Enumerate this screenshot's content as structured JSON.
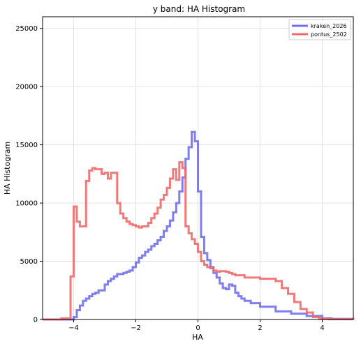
{
  "chart_data": {
    "type": "line",
    "title": "y band: HA Histogram",
    "xlabel": "HA",
    "ylabel": "HA Histogram",
    "xlim": [
      -5,
      5
    ],
    "ylim": [
      0,
      26000
    ],
    "xticks": [
      -4,
      -2,
      0,
      2,
      4
    ],
    "yticks": [
      0,
      5000,
      10000,
      15000,
      20000,
      25000
    ],
    "grid": true,
    "legend_position": "top-right",
    "step": true,
    "series": [
      {
        "name": "kraken_2026",
        "color": "#7070ee",
        "x": [
          -5,
          -4.0,
          -3.9,
          -3.8,
          -3.7,
          -3.6,
          -3.5,
          -3.4,
          -3.3,
          -3.2,
          -3.0,
          -2.9,
          -2.8,
          -2.7,
          -2.6,
          -2.5,
          -2.4,
          -2.3,
          -2.2,
          -2.1,
          -2.0,
          -1.9,
          -1.8,
          -1.7,
          -1.6,
          -1.5,
          -1.4,
          -1.3,
          -1.2,
          -1.1,
          -1.0,
          -0.9,
          -0.8,
          -0.7,
          -0.6,
          -0.5,
          -0.4,
          -0.3,
          -0.2,
          -0.1,
          0.0,
          0.1,
          0.2,
          0.3,
          0.4,
          0.5,
          0.6,
          0.7,
          0.8,
          0.9,
          1.0,
          1.1,
          1.2,
          1.3,
          1.4,
          1.5,
          1.7,
          2.0,
          2.5,
          3.0,
          3.5,
          4.0,
          4.3,
          5.0
        ],
        "values": [
          0,
          200,
          800,
          1200,
          1600,
          1800,
          2000,
          2200,
          2300,
          2500,
          3000,
          3300,
          3500,
          3700,
          3900,
          3900,
          4000,
          4100,
          4200,
          4500,
          4900,
          5300,
          5500,
          5800,
          6000,
          6300,
          6500,
          6800,
          7100,
          7600,
          8000,
          8500,
          9200,
          10000,
          11000,
          12200,
          13800,
          14800,
          16100,
          15300,
          11000,
          7100,
          5700,
          5100,
          4500,
          4000,
          3600,
          3100,
          2700,
          2600,
          3000,
          2900,
          2300,
          2000,
          1800,
          1600,
          1400,
          1100,
          700,
          500,
          300,
          100,
          50,
          0
        ]
      },
      {
        "name": "pontus_2502",
        "color": "#f06a6a",
        "x": [
          -5,
          -4.4,
          -4.1,
          -4.0,
          -3.9,
          -3.8,
          -3.6,
          -3.5,
          -3.4,
          -3.3,
          -3.1,
          -3.0,
          -2.9,
          -2.8,
          -2.6,
          -2.5,
          -2.4,
          -2.3,
          -2.2,
          -2.1,
          -2.0,
          -1.9,
          -1.8,
          -1.6,
          -1.5,
          -1.4,
          -1.3,
          -1.2,
          -1.1,
          -1.0,
          -0.9,
          -0.8,
          -0.7,
          -0.6,
          -0.5,
          -0.4,
          -0.3,
          -0.2,
          -0.1,
          0.0,
          0.1,
          0.2,
          0.3,
          0.4,
          0.5,
          0.6,
          0.7,
          0.8,
          0.9,
          1.0,
          1.1,
          1.2,
          1.5,
          2.0,
          2.5,
          2.7,
          2.9,
          3.1,
          3.3,
          3.5,
          3.7,
          3.9,
          4.0,
          4.2,
          5.0
        ],
        "values": [
          0,
          100,
          3700,
          9700,
          8400,
          8000,
          11900,
          12800,
          13000,
          12900,
          12500,
          12600,
          12100,
          12600,
          10000,
          9100,
          8700,
          8400,
          8200,
          8100,
          8000,
          7900,
          8000,
          8300,
          8700,
          9100,
          9600,
          10300,
          10700,
          11300,
          12100,
          12900,
          12000,
          13500,
          13000,
          8000,
          7400,
          6900,
          6500,
          5800,
          5000,
          4700,
          4500,
          4400,
          4200,
          4100,
          4150,
          4150,
          4100,
          4000,
          3900,
          3800,
          3600,
          3500,
          3300,
          2700,
          2200,
          1500,
          900,
          600,
          200,
          100,
          50,
          20,
          0
        ]
      }
    ]
  }
}
